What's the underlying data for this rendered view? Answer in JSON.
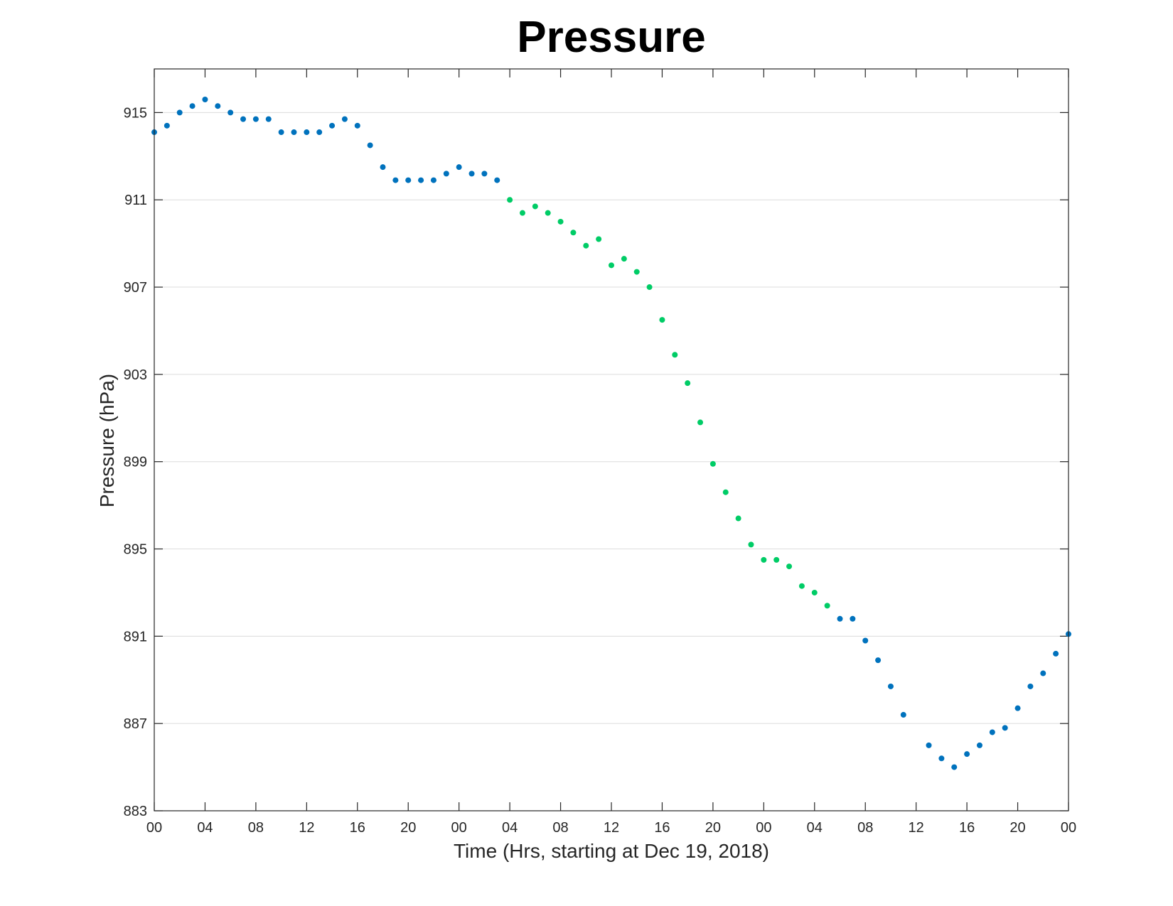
{
  "chart_data": {
    "type": "scatter",
    "title": "Pressure",
    "xlabel": "Time (Hrs, starting at Dec 19, 2018)",
    "ylabel": "Pressure (hPa)",
    "xlim": [
      0,
      72
    ],
    "ylim": [
      883,
      917
    ],
    "x_unit": "hours",
    "x_ticks": [
      0,
      4,
      8,
      12,
      16,
      20,
      24,
      28,
      32,
      36,
      40,
      44,
      48,
      52,
      56,
      60,
      64,
      68,
      72
    ],
    "x_tick_labels": [
      "00",
      "04",
      "08",
      "12",
      "16",
      "20",
      "00",
      "04",
      "08",
      "12",
      "16",
      "20",
      "00",
      "04",
      "08",
      "12",
      "16",
      "20",
      "00"
    ],
    "y_ticks": [
      883,
      887,
      891,
      895,
      899,
      903,
      907,
      911,
      915
    ],
    "y_tick_labels": [
      "883",
      "887",
      "891",
      "895",
      "899",
      "903",
      "907",
      "911",
      "915"
    ],
    "grid": "horizontal",
    "series": [
      {
        "color": "#0072BD",
        "x": [
          0,
          1,
          2,
          3,
          4,
          5,
          6,
          7,
          8,
          9,
          10,
          11,
          12,
          13,
          14,
          15,
          16,
          17,
          18,
          19,
          20,
          21,
          22,
          23,
          24,
          25,
          26,
          27
        ],
        "y": [
          914.1,
          914.4,
          915.0,
          915.3,
          915.6,
          915.3,
          915.0,
          914.7,
          914.7,
          914.7,
          914.1,
          914.1,
          914.1,
          914.1,
          914.4,
          914.7,
          914.4,
          913.5,
          912.5,
          911.9,
          911.9,
          911.9,
          911.9,
          912.2,
          912.5,
          912.2,
          912.2,
          911.9
        ]
      },
      {
        "color": "#00CC66",
        "x": [
          28,
          29,
          30,
          31,
          32,
          33,
          34,
          35,
          36,
          37,
          38,
          39,
          40,
          41,
          42,
          43,
          44,
          45,
          46,
          47,
          48,
          49,
          50,
          51,
          52,
          53,
          54
        ],
        "y": [
          911.0,
          910.4,
          910.7,
          910.4,
          910.0,
          909.5,
          908.9,
          909.2,
          908.0,
          908.3,
          907.7,
          907.0,
          905.5,
          903.9,
          902.6,
          900.8,
          898.9,
          897.6,
          896.4,
          895.2,
          894.5,
          894.5,
          894.2,
          893.3,
          893.0,
          892.4,
          null
        ]
      },
      {
        "color": "#0072BD",
        "x": [
          54,
          55,
          56,
          57,
          58,
          59,
          61,
          62,
          63,
          64,
          65,
          66,
          67,
          68,
          69,
          70,
          71,
          72
        ],
        "y": [
          891.8,
          891.8,
          890.8,
          889.9,
          888.7,
          887.4,
          886.0,
          885.4,
          885.0,
          885.6,
          886.0,
          886.6,
          886.8,
          887.7,
          888.7,
          889.3,
          890.2,
          891.1
        ]
      }
    ]
  }
}
